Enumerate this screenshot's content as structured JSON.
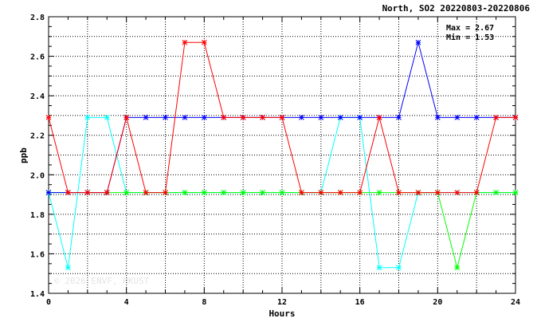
{
  "chart_data": {
    "type": "line",
    "title": "North, SO2 20220803-20220806",
    "xlabel": "Hours",
    "ylabel": "ppb",
    "xlim": [
      0,
      24
    ],
    "ylim": [
      1.4,
      2.8
    ],
    "xticks": [
      0,
      4,
      8,
      12,
      16,
      20,
      24
    ],
    "yticks": [
      "1.4",
      "1.6",
      "1.8",
      "2.0",
      "2.2",
      "2.4",
      "2.6",
      "2.8"
    ],
    "grid": true,
    "stats": {
      "max": "Max = 2.67",
      "min": "Min = 1.53"
    },
    "watermark": "© 2026 ENVF, HKUST",
    "x": [
      0,
      1,
      2,
      3,
      4,
      5,
      6,
      7,
      8,
      9,
      10,
      11,
      12,
      13,
      14,
      15,
      16,
      17,
      18,
      19,
      20,
      21,
      22,
      23,
      24
    ],
    "series": [
      {
        "color": "#00ffff",
        "values": [
          1.91,
          1.53,
          2.29,
          2.29,
          1.91,
          1.91,
          1.91,
          1.91,
          1.91,
          1.91,
          1.91,
          1.91,
          1.91,
          1.91,
          1.91,
          2.29,
          2.29,
          1.53,
          1.53,
          1.91,
          1.91,
          1.91,
          1.91,
          1.91,
          1.91
        ]
      },
      {
        "color": "#00ff00",
        "values": [
          1.91,
          1.91,
          1.91,
          1.91,
          1.91,
          1.91,
          1.91,
          1.91,
          1.91,
          1.91,
          1.91,
          1.91,
          1.91,
          1.91,
          1.91,
          1.91,
          1.91,
          1.91,
          1.91,
          1.91,
          1.91,
          1.53,
          1.91,
          1.91,
          1.91
        ]
      },
      {
        "color": "#0000ff",
        "values": [
          1.91,
          1.91,
          1.91,
          1.91,
          2.29,
          2.29,
          2.29,
          2.29,
          2.29,
          2.29,
          2.29,
          2.29,
          2.29,
          2.29,
          2.29,
          2.29,
          2.29,
          2.29,
          2.29,
          2.67,
          2.29,
          2.29,
          2.29,
          2.29,
          2.29
        ]
      },
      {
        "color": "#ff0000",
        "values": [
          2.29,
          1.91,
          1.91,
          1.91,
          2.29,
          1.91,
          1.91,
          2.67,
          2.67,
          2.29,
          2.29,
          2.29,
          2.29,
          1.91,
          1.91,
          1.91,
          1.91,
          2.29,
          1.91,
          1.91,
          1.91,
          1.91,
          1.91,
          2.29,
          2.29
        ]
      }
    ]
  }
}
